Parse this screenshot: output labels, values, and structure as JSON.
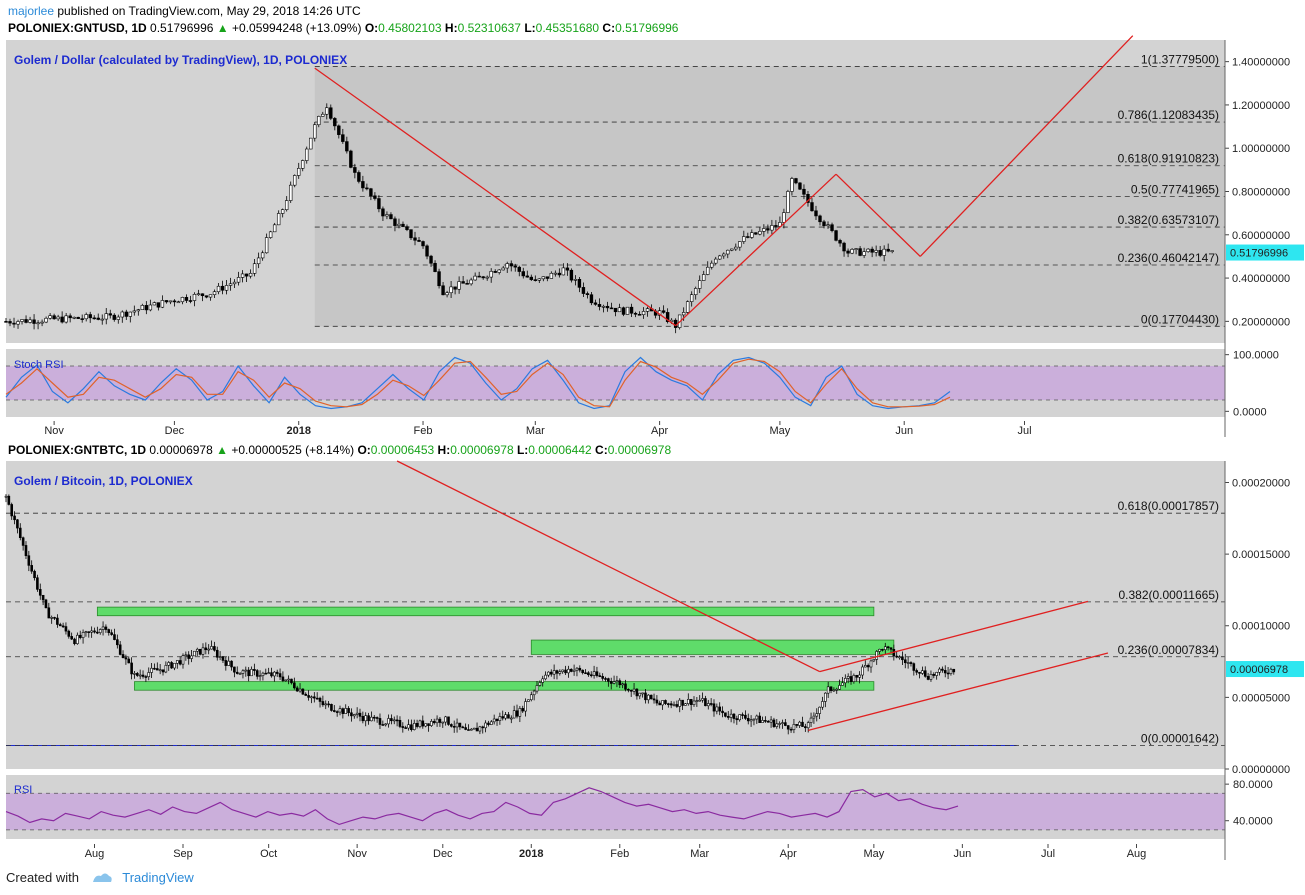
{
  "header1": {
    "user": "majorlee",
    "published": "published on TradingView.com, May 29, 2018 14:26 UTC",
    "symbol": "POLONIEX:GNTUSD, 1D",
    "price": "0.51796996",
    "change": "+0.05994248 (+13.09%)",
    "o_label": "O:",
    "o": "0.45802103",
    "h_label": "H:",
    "h": "0.52310637",
    "l_label": "L:",
    "l": "0.45351680",
    "c_label": "C:",
    "c": "0.51796996"
  },
  "header2": {
    "symbol": "POLONIEX:GNTBTC, 1D",
    "price": "0.00006978",
    "change": "+0.00000525 (+8.14%)",
    "o_label": "O:",
    "o": "0.00006453",
    "h_label": "H:",
    "h": "0.00006978",
    "l_label": "L:",
    "l": "0.00006442",
    "c_label": "C:",
    "c": "0.00006978"
  },
  "footer": {
    "created": "Created with",
    "brand": "TradingView"
  },
  "colors": {
    "pane_bg": "#d3d3d3",
    "fib_bg": "#c6c6c6",
    "trend": "#e02020",
    "zone": "#5fdc6a",
    "rsi_band": "#c9a8dc",
    "stoch_k": "#2a7ae0",
    "stoch_d": "#e0622a",
    "rsi_line": "#8a2aa0",
    "price_tag": "#2ee6f0",
    "candle_up": "#ffffff",
    "candle_down": "#000000"
  },
  "chart_data": [
    {
      "type": "candlestick",
      "title": "Golem / Dollar (calculated by TradingView), 1D, POLONIEX",
      "x_range": [
        "2017-10-20",
        "2018-08-20"
      ],
      "x_ticks": [
        "Nov",
        "Dec",
        "2018",
        "Feb",
        "Mar",
        "Apr",
        "May",
        "Jun",
        "Jul"
      ],
      "y_range": [
        0.1,
        1.5
      ],
      "y_ticks": [
        "0.20000000",
        "0.40000000",
        "0.60000000",
        "0.80000000",
        "1.00000000",
        "1.20000000",
        "1.40000000"
      ],
      "current_price": "0.51796996",
      "fib_levels": [
        {
          "label": "1(1.37779500)",
          "value": 1.377795
        },
        {
          "label": "0.786(1.12083435)",
          "value": 1.12083435
        },
        {
          "label": "0.618(0.91910823)",
          "value": 0.91910823
        },
        {
          "label": "0.5(0.77741965)",
          "value": 0.77741965
        },
        {
          "label": "0.382(0.63573107)",
          "value": 0.63573107
        },
        {
          "label": "0.236(0.46042147)",
          "value": 0.46042147
        },
        {
          "label": "0(0.17704430)",
          "value": 0.1770443
        }
      ],
      "close_series": {
        "dates": [
          "2017-10-20",
          "2017-11-01",
          "2017-11-15",
          "2017-12-01",
          "2017-12-10",
          "2017-12-20",
          "2017-12-28",
          "2018-01-05",
          "2018-01-08",
          "2018-01-15",
          "2018-01-22",
          "2018-02-01",
          "2018-02-06",
          "2018-02-15",
          "2018-02-22",
          "2018-03-01",
          "2018-03-08",
          "2018-03-15",
          "2018-03-22",
          "2018-04-01",
          "2018-04-05",
          "2018-04-10",
          "2018-04-15",
          "2018-04-22",
          "2018-05-01",
          "2018-05-04",
          "2018-05-10",
          "2018-05-18",
          "2018-05-29"
        ],
        "values": [
          0.2,
          0.21,
          0.22,
          0.3,
          0.33,
          0.42,
          0.72,
          1.1,
          1.2,
          0.88,
          0.7,
          0.55,
          0.34,
          0.4,
          0.47,
          0.38,
          0.44,
          0.3,
          0.25,
          0.24,
          0.18,
          0.35,
          0.5,
          0.58,
          0.65,
          0.85,
          0.7,
          0.52,
          0.518
        ]
      },
      "trendlines": [
        {
          "from": [
            "2018-01-05",
            1.37
          ],
          "to": [
            "2018-04-05",
            0.18
          ]
        },
        {
          "from": [
            "2018-04-05",
            0.18
          ],
          "to": [
            "2018-05-15",
            0.88
          ]
        },
        {
          "from": [
            "2018-05-15",
            0.88
          ],
          "to": [
            "2018-06-05",
            0.5
          ]
        },
        {
          "from": [
            "2018-06-05",
            0.5
          ],
          "to": [
            "2018-07-28",
            1.52
          ]
        }
      ]
    },
    {
      "type": "line",
      "title": "Stoch RSI",
      "y_range": [
        -10,
        110
      ],
      "y_ticks": [
        "100.0000",
        "0.0000"
      ],
      "band": [
        20,
        80
      ],
      "series": [
        {
          "name": "",
          "values": [
            25,
            60,
            82,
            35,
            15,
            40,
            70,
            45,
            30,
            20,
            50,
            75,
            55,
            20,
            35,
            80,
            45,
            15,
            60,
            30,
            10,
            5,
            8,
            15,
            40,
            65,
            40,
            20,
            70,
            95,
            85,
            50,
            20,
            40,
            75,
            90,
            55,
            15,
            5,
            10,
            70,
            95,
            70,
            55,
            45,
            20,
            65,
            90,
            95,
            85,
            60,
            25,
            10,
            60,
            80,
            30,
            10,
            5,
            8,
            10,
            15,
            35
          ]
        },
        {
          "name": "",
          "values": [
            30,
            50,
            75,
            50,
            25,
            30,
            60,
            55,
            40,
            25,
            40,
            65,
            60,
            30,
            30,
            70,
            55,
            25,
            50,
            40,
            18,
            10,
            8,
            12,
            30,
            55,
            45,
            28,
            55,
            85,
            88,
            60,
            30,
            35,
            65,
            85,
            65,
            25,
            10,
            8,
            55,
            88,
            78,
            60,
            50,
            30,
            55,
            85,
            92,
            88,
            70,
            35,
            15,
            48,
            75,
            40,
            15,
            8,
            8,
            9,
            12,
            25
          ]
        }
      ]
    },
    {
      "type": "candlestick",
      "title": "Golem / Bitcoin, 1D, POLONIEX",
      "x_range": [
        "2017-07-01",
        "2018-09-01"
      ],
      "x_ticks": [
        "Aug",
        "Sep",
        "Oct",
        "Nov",
        "Dec",
        "2018",
        "Feb",
        "Mar",
        "Apr",
        "May",
        "Jun",
        "Jul",
        "Aug"
      ],
      "y_range": [
        0.0,
        0.000215
      ],
      "y_ticks": [
        "0.00000000",
        "0.00005000",
        "0.00010000",
        "0.00015000",
        "0.00020000"
      ],
      "current_price": "0.00006978",
      "fib_levels": [
        {
          "label": "0.618(0.00017857)",
          "value": 0.00017857
        },
        {
          "label": "0.382(0.00011665)",
          "value": 0.00011665
        },
        {
          "label": "0.236(0.00007834)",
          "value": 7.834e-05
        },
        {
          "label": "0(0.00001642)",
          "value": 1.642e-05
        }
      ],
      "close_series": {
        "dates": [
          "2017-07-01",
          "2017-07-08",
          "2017-07-15",
          "2017-07-25",
          "2017-08-05",
          "2017-08-15",
          "2017-08-25",
          "2017-09-10",
          "2017-09-20",
          "2017-10-05",
          "2017-10-20",
          "2017-11-05",
          "2017-11-20",
          "2017-12-01",
          "2017-12-10",
          "2017-12-20",
          "2017-12-28",
          "2018-01-05",
          "2018-01-15",
          "2018-02-01",
          "2018-02-15",
          "2018-03-01",
          "2018-03-10",
          "2018-03-20",
          "2018-04-01",
          "2018-04-08",
          "2018-04-15",
          "2018-04-25",
          "2018-05-04",
          "2018-05-12",
          "2018-05-20",
          "2018-05-29"
        ],
        "values": [
          0.00019,
          0.00015,
          0.00011,
          9e-05,
          0.0001,
          6.5e-05,
          7e-05,
          8.5e-05,
          6.8e-05,
          6.5e-05,
          4.5e-05,
          3.5e-05,
          3e-05,
          3.5e-05,
          2.5e-05,
          3.5e-05,
          4e-05,
          6.5e-05,
          7e-05,
          6e-05,
          4.5e-05,
          4.8e-05,
          3.8e-05,
          3.5e-05,
          3e-05,
          3e-05,
          5.5e-05,
          6.5e-05,
          8.5e-05,
          7.5e-05,
          6.5e-05,
          6.978e-05
        ]
      },
      "zones": [
        {
          "from": "2017-08-02",
          "to": "2018-05-01",
          "low": 0.000107,
          "high": 0.000113
        },
        {
          "from": "2017-08-15",
          "to": "2018-05-01",
          "low": 5.5e-05,
          "high": 6.1e-05
        },
        {
          "from": "2018-01-01",
          "to": "2018-05-08",
          "low": 8e-05,
          "high": 9e-05
        }
      ],
      "trendlines": [
        {
          "from": [
            "2017-11-15",
            0.000215
          ],
          "to": [
            "2018-04-12",
            6.8e-05
          ]
        },
        {
          "from": [
            "2018-04-08",
            2.7e-05
          ],
          "to": [
            "2018-07-22",
            8.1e-05
          ]
        },
        {
          "from": [
            "2018-04-12",
            6.8e-05
          ],
          "to": [
            "2018-07-15",
            0.000117
          ]
        }
      ],
      "baseline": {
        "value": 1.642e-05,
        "from": "2017-07-01",
        "to": "2018-06-20"
      }
    },
    {
      "type": "line",
      "title": "RSI",
      "y_range": [
        20,
        90
      ],
      "y_ticks": [
        "80.0000",
        "40.0000"
      ],
      "band": [
        30,
        70
      ],
      "series": [
        {
          "name": "",
          "values": [
            50,
            45,
            38,
            42,
            40,
            48,
            45,
            42,
            50,
            46,
            44,
            48,
            52,
            47,
            55,
            50,
            48,
            54,
            60,
            52,
            48,
            44,
            50,
            46,
            48,
            45,
            52,
            42,
            36,
            40,
            44,
            42,
            46,
            48,
            44,
            40,
            48,
            52,
            46,
            42,
            48,
            50,
            60,
            55,
            48,
            46,
            60,
            64,
            70,
            76,
            72,
            66,
            60,
            56,
            58,
            54,
            50,
            52,
            48,
            50,
            46,
            44,
            42,
            46,
            50,
            48,
            44,
            46,
            48,
            44,
            50,
            72,
            74,
            66,
            70,
            62,
            64,
            58,
            54,
            52,
            56
          ]
        }
      ]
    }
  ]
}
